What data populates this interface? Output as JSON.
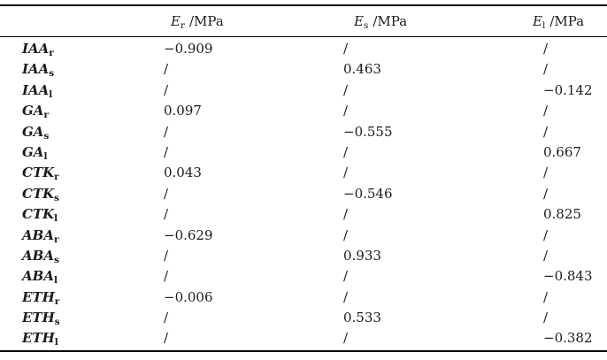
{
  "table": {
    "text_color": "#1b1b1b",
    "rule_color": "#000000",
    "headers": [
      {
        "symbol": "E",
        "sub": "r",
        "unit": "/MPa"
      },
      {
        "symbol": "E",
        "sub": "s",
        "unit": "/MPa"
      },
      {
        "symbol": "E",
        "sub": "l",
        "unit": "/MPa"
      }
    ],
    "rows": [
      {
        "name": "IAA",
        "sub": "r",
        "values": [
          "−0.909",
          "/",
          "/"
        ]
      },
      {
        "name": "IAA",
        "sub": "s",
        "values": [
          "/",
          "0.463",
          "/"
        ]
      },
      {
        "name": "IAA",
        "sub": "l",
        "values": [
          "/",
          "/",
          "−0.142"
        ]
      },
      {
        "name": "GA",
        "sub": "r",
        "values": [
          "0.097",
          "/",
          "/"
        ]
      },
      {
        "name": "GA",
        "sub": "s",
        "values": [
          "/",
          "−0.555",
          "/"
        ]
      },
      {
        "name": "GA",
        "sub": "l",
        "values": [
          "/",
          "/",
          "0.667"
        ]
      },
      {
        "name": "CTK",
        "sub": "r",
        "values": [
          "0.043",
          "/",
          "/"
        ]
      },
      {
        "name": "CTK",
        "sub": "s",
        "values": [
          "/",
          "−0.546",
          "/"
        ]
      },
      {
        "name": "CTK",
        "sub": "l",
        "values": [
          "/",
          "/",
          "0.825"
        ]
      },
      {
        "name": "ABA",
        "sub": "r",
        "values": [
          "−0.629",
          "/",
          "/"
        ]
      },
      {
        "name": "ABA",
        "sub": "s",
        "values": [
          "/",
          "0.933",
          "/"
        ]
      },
      {
        "name": "ABA",
        "sub": "l",
        "values": [
          "/",
          "/",
          "−0.843"
        ]
      },
      {
        "name": "ETH",
        "sub": "r",
        "values": [
          "−0.006",
          "/",
          "/"
        ]
      },
      {
        "name": "ETH",
        "sub": "s",
        "values": [
          "/",
          "0.533",
          "/"
        ]
      },
      {
        "name": "ETH",
        "sub": "l",
        "values": [
          "/",
          "/",
          "−0.382"
        ]
      }
    ]
  }
}
